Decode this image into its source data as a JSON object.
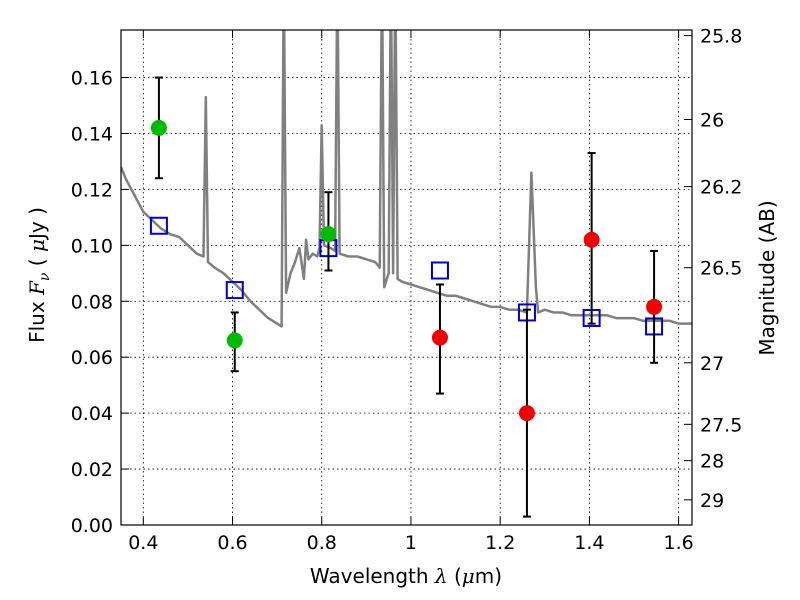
{
  "chart_data": {
    "type": "scatter",
    "xlabel": "Wavelength  λ (μm)",
    "ylabel": "Flux  Fν  ( μJy )",
    "ylabel_right": "Magnitude (AB)",
    "xlim": [
      0.35,
      1.63
    ],
    "ylim": [
      0.0,
      0.177
    ],
    "grid": true,
    "x_ticks": [
      0.4,
      0.6,
      0.8,
      1.0,
      1.2,
      1.4,
      1.6
    ],
    "x_tick_labels": [
      "0.4",
      "0.6",
      "0.8",
      "1",
      "1.2",
      "1.4",
      "1.6"
    ],
    "y_ticks": [
      0.0,
      0.02,
      0.04,
      0.06,
      0.08,
      0.1,
      0.12,
      0.14,
      0.16
    ],
    "y_tick_labels": [
      "0.00",
      "0.02",
      "0.04",
      "0.06",
      "0.08",
      "0.10",
      "0.12",
      "0.14",
      "0.16"
    ],
    "right_ticks": [
      {
        "label": "25.8",
        "flux": 0.175
      },
      {
        "label": "26",
        "flux": 0.145
      },
      {
        "label": "26.2",
        "flux": 0.121
      },
      {
        "label": "26.5",
        "flux": 0.092
      },
      {
        "label": "27",
        "flux": 0.058
      },
      {
        "label": "27.5",
        "flux": 0.036
      },
      {
        "label": "28",
        "flux": 0.023
      },
      {
        "label": "29",
        "flux": 0.009
      }
    ],
    "series": [
      {
        "kind": "line",
        "color": "#808080",
        "points": [
          [
            0.35,
            0.128
          ],
          [
            0.36,
            0.124
          ],
          [
            0.37,
            0.121
          ],
          [
            0.38,
            0.118
          ],
          [
            0.39,
            0.115
          ],
          [
            0.4,
            0.112
          ],
          [
            0.42,
            0.109
          ],
          [
            0.44,
            0.106
          ],
          [
            0.46,
            0.104
          ],
          [
            0.48,
            0.103
          ],
          [
            0.5,
            0.1
          ],
          [
            0.52,
            0.097
          ],
          [
            0.535,
            0.096
          ],
          [
            0.54,
            0.153
          ],
          [
            0.545,
            0.094
          ],
          [
            0.56,
            0.092
          ],
          [
            0.58,
            0.09
          ],
          [
            0.6,
            0.087
          ],
          [
            0.62,
            0.084
          ],
          [
            0.64,
            0.08
          ],
          [
            0.66,
            0.077
          ],
          [
            0.68,
            0.074
          ],
          [
            0.7,
            0.072
          ],
          [
            0.71,
            0.071
          ],
          [
            0.715,
            0.2
          ],
          [
            0.72,
            0.083
          ],
          [
            0.73,
            0.09
          ],
          [
            0.74,
            0.094
          ],
          [
            0.75,
            0.099
          ],
          [
            0.76,
            0.088
          ],
          [
            0.765,
            0.102
          ],
          [
            0.77,
            0.095
          ],
          [
            0.78,
            0.097
          ],
          [
            0.79,
            0.096
          ],
          [
            0.795,
            0.099
          ],
          [
            0.8,
            0.143
          ],
          [
            0.805,
            0.1
          ],
          [
            0.82,
            0.099
          ],
          [
            0.83,
            0.098
          ],
          [
            0.835,
            0.2
          ],
          [
            0.84,
            0.097
          ],
          [
            0.86,
            0.096
          ],
          [
            0.88,
            0.096
          ],
          [
            0.9,
            0.095
          ],
          [
            0.92,
            0.094
          ],
          [
            0.93,
            0.092
          ],
          [
            0.935,
            0.2
          ],
          [
            0.94,
            0.085
          ],
          [
            0.95,
            0.09
          ],
          [
            0.955,
            0.2
          ],
          [
            0.96,
            0.09
          ],
          [
            0.965,
            0.2
          ],
          [
            0.97,
            0.088
          ],
          [
            0.98,
            0.087
          ],
          [
            1.0,
            0.086
          ],
          [
            1.02,
            0.085
          ],
          [
            1.04,
            0.084
          ],
          [
            1.06,
            0.083
          ],
          [
            1.08,
            0.082
          ],
          [
            1.1,
            0.082
          ],
          [
            1.12,
            0.081
          ],
          [
            1.14,
            0.08
          ],
          [
            1.16,
            0.079
          ],
          [
            1.18,
            0.078
          ],
          [
            1.2,
            0.078
          ],
          [
            1.22,
            0.077
          ],
          [
            1.24,
            0.077
          ],
          [
            1.26,
            0.076
          ],
          [
            1.27,
            0.126
          ],
          [
            1.28,
            0.085
          ],
          [
            1.285,
            0.076
          ],
          [
            1.3,
            0.077
          ],
          [
            1.32,
            0.076
          ],
          [
            1.34,
            0.076
          ],
          [
            1.36,
            0.075
          ],
          [
            1.38,
            0.075
          ],
          [
            1.4,
            0.075
          ],
          [
            1.42,
            0.075
          ],
          [
            1.44,
            0.075
          ],
          [
            1.46,
            0.074
          ],
          [
            1.48,
            0.074
          ],
          [
            1.5,
            0.074
          ],
          [
            1.52,
            0.073
          ],
          [
            1.54,
            0.073
          ],
          [
            1.56,
            0.073
          ],
          [
            1.58,
            0.073
          ],
          [
            1.6,
            0.072
          ],
          [
            1.63,
            0.072
          ]
        ]
      },
      {
        "kind": "squares",
        "color": "#0000cc",
        "points": [
          [
            0.435,
            0.107
          ],
          [
            0.605,
            0.084
          ],
          [
            0.815,
            0.099
          ],
          [
            1.065,
            0.091
          ],
          [
            1.26,
            0.076
          ],
          [
            1.405,
            0.074
          ],
          [
            1.545,
            0.071
          ]
        ]
      },
      {
        "kind": "circles",
        "color": "#00bb00",
        "points": [
          {
            "x": 0.435,
            "y": 0.142,
            "lo": 0.124,
            "hi": 0.16
          },
          {
            "x": 0.605,
            "y": 0.066,
            "lo": 0.055,
            "hi": 0.076
          },
          {
            "x": 0.815,
            "y": 0.104,
            "lo": 0.091,
            "hi": 0.119
          }
        ]
      },
      {
        "kind": "circles",
        "color": "#ee0000",
        "points": [
          {
            "x": 1.065,
            "y": 0.067,
            "lo": 0.047,
            "hi": 0.086
          },
          {
            "x": 1.26,
            "y": 0.04,
            "lo": 0.003,
            "hi": 0.077
          },
          {
            "x": 1.405,
            "y": 0.102,
            "lo": 0.072,
            "hi": 0.133
          },
          {
            "x": 1.545,
            "y": 0.078,
            "lo": 0.058,
            "hi": 0.098
          }
        ]
      }
    ]
  }
}
